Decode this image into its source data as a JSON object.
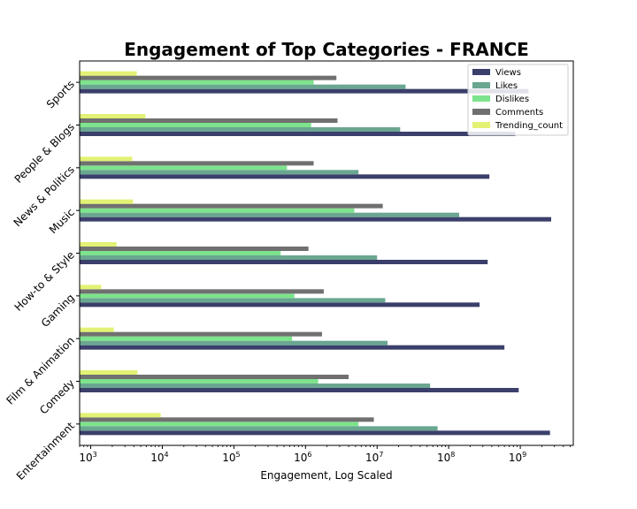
{
  "chart_data": {
    "type": "bar",
    "orientation": "horizontal",
    "title": "Engagement of Top Categories - FRANCE",
    "xlabel": "Engagement, Log Scaled",
    "ylabel": "",
    "x_scale": "log",
    "xlim": [
      700,
      5500000000
    ],
    "x_tick_exponents": [
      3,
      4,
      5,
      6,
      7,
      8,
      9
    ],
    "x_tick_labels": [
      "10",
      "10",
      "10",
      "10",
      "10",
      "10",
      "10"
    ],
    "grid": false,
    "legend_position": "top-right",
    "categories": [
      "Entertainment",
      "Comedy",
      "Film & Animation",
      "Gaming",
      "How-to & Style",
      "Music",
      "News & Politics",
      "People & Blogs",
      "Sports"
    ],
    "series": [
      {
        "name": "Views",
        "color": "#3b3f6b",
        "values": [
          2600000000,
          950000000,
          600000000,
          270000000,
          350000000,
          2700000000,
          370000000,
          850000000,
          1300000000
        ]
      },
      {
        "name": "Likes",
        "color": "#6aa690",
        "values": [
          70000000,
          55000000,
          14000000,
          13000000,
          10000000,
          140000000,
          5500000,
          21000000,
          25000000
        ]
      },
      {
        "name": "Dislikes",
        "color": "#7de38c",
        "values": [
          5500000,
          1500000,
          650000,
          700000,
          450000,
          4800000,
          550000,
          1200000,
          1300000
        ]
      },
      {
        "name": "Comments",
        "color": "#707070",
        "values": [
          9000000,
          4000000,
          1700000,
          1800000,
          1100000,
          12000000,
          1300000,
          2800000,
          2700000
        ]
      },
      {
        "name": "Trending_count",
        "color": "#e3f174",
        "values": [
          9500,
          4500,
          2100,
          1400,
          2300,
          3900,
          3800,
          5800,
          4400
        ]
      }
    ]
  }
}
